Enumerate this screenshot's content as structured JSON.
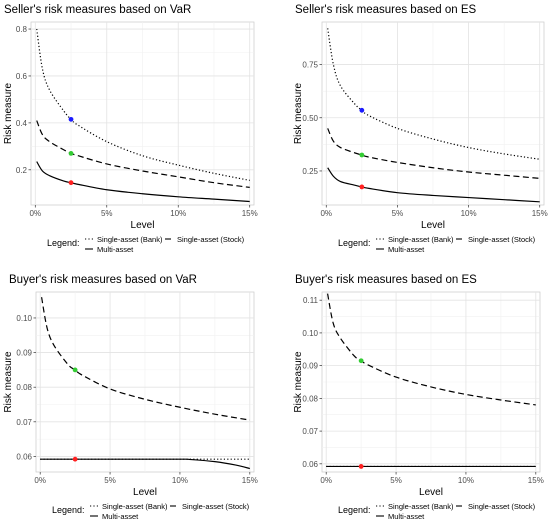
{
  "chart_data": [
    {
      "type": "line",
      "title": "Seller's risk measures based on VaR",
      "xlabel": "Level",
      "ylabel": "Risk measure",
      "xlim": [
        -0.3,
        15.3
      ],
      "ylim": [
        0.05,
        0.83
      ],
      "xticks": [
        0,
        5,
        10,
        15
      ],
      "xtick_labels": [
        "0%",
        "5%",
        "10%",
        "15%"
      ],
      "yticks": [
        0.2,
        0.4,
        0.6,
        0.8
      ],
      "ytick_labels": [
        "0.2",
        "0.4",
        "0.6",
        "0.8"
      ],
      "grid": true,
      "series": [
        {
          "name": "Single-asset (Bank)",
          "style": "dotted",
          "x": [
            0.1,
            0.5,
            1,
            2,
            2.5,
            3,
            5,
            7.5,
            10,
            12.5,
            15
          ],
          "y": [
            0.8,
            0.63,
            0.54,
            0.45,
            0.415,
            0.39,
            0.32,
            0.26,
            0.22,
            0.185,
            0.155
          ]
        },
        {
          "name": "Single-asset (Stock)",
          "style": "dashed",
          "x": [
            0.1,
            0.5,
            1,
            2,
            2.5,
            3,
            5,
            7.5,
            10,
            12.5,
            15
          ],
          "y": [
            0.41,
            0.35,
            0.32,
            0.285,
            0.27,
            0.26,
            0.225,
            0.195,
            0.17,
            0.145,
            0.125
          ]
        },
        {
          "name": "Multi-asset",
          "style": "solid",
          "x": [
            0.1,
            0.5,
            1,
            2,
            2.5,
            3,
            5,
            7.5,
            10,
            12.5,
            15
          ],
          "y": [
            0.235,
            0.195,
            0.175,
            0.152,
            0.145,
            0.138,
            0.115,
            0.098,
            0.085,
            0.075,
            0.065
          ]
        }
      ],
      "markers": [
        {
          "x": 2.5,
          "y": 0.415,
          "color": "#1a1aff"
        },
        {
          "x": 2.5,
          "y": 0.27,
          "color": "#33cc33"
        },
        {
          "x": 2.5,
          "y": 0.145,
          "color": "#ff2020"
        }
      ],
      "legend": {
        "title": "Legend:",
        "placement": "bottom"
      }
    },
    {
      "type": "line",
      "title": "Seller's risk measures based on ES",
      "xlabel": "Level",
      "ylabel": "Risk measure",
      "xlim": [
        -0.3,
        15.3
      ],
      "ylim": [
        0.09,
        0.95
      ],
      "xticks": [
        0,
        5,
        10,
        15
      ],
      "xtick_labels": [
        "0%",
        "5%",
        "10%",
        "15%"
      ],
      "yticks": [
        0.25,
        0.5,
        0.75
      ],
      "ytick_labels": [
        "0.25",
        "0.50",
        "0.75"
      ],
      "grid": true,
      "series": [
        {
          "name": "Single-asset (Bank)",
          "style": "dotted",
          "x": [
            0.1,
            0.5,
            1,
            2,
            2.5,
            3,
            5,
            7.5,
            10,
            12.5,
            15
          ],
          "y": [
            0.92,
            0.75,
            0.65,
            0.565,
            0.535,
            0.51,
            0.45,
            0.4,
            0.36,
            0.33,
            0.305
          ]
        },
        {
          "name": "Single-asset (Stock)",
          "style": "dashed",
          "x": [
            0.1,
            0.5,
            1,
            2,
            2.5,
            3,
            5,
            7.5,
            10,
            12.5,
            15
          ],
          "y": [
            0.45,
            0.39,
            0.36,
            0.335,
            0.325,
            0.315,
            0.29,
            0.265,
            0.245,
            0.23,
            0.215
          ]
        },
        {
          "name": "Multi-asset",
          "style": "solid",
          "x": [
            0.1,
            0.5,
            1,
            2,
            2.5,
            3,
            5,
            7.5,
            10,
            12.5,
            15
          ],
          "y": [
            0.265,
            0.225,
            0.2,
            0.183,
            0.175,
            0.168,
            0.148,
            0.135,
            0.125,
            0.115,
            0.105
          ]
        }
      ],
      "markers": [
        {
          "x": 2.5,
          "y": 0.535,
          "color": "#1a1aff"
        },
        {
          "x": 2.5,
          "y": 0.325,
          "color": "#33cc33"
        },
        {
          "x": 2.5,
          "y": 0.175,
          "color": "#ff2020"
        }
      ],
      "legend": {
        "title": "Legend:",
        "placement": "bottom"
      }
    },
    {
      "type": "line",
      "title": "Buyer's risk measures based on VaR",
      "xlabel": "Level",
      "ylabel": "Risk measure",
      "xlim": [
        -0.3,
        15.3
      ],
      "ylim": [
        0.0555,
        0.1075
      ],
      "xticks": [
        0,
        5,
        10,
        15
      ],
      "xtick_labels": [
        "0%",
        "5%",
        "10%",
        "15%"
      ],
      "yticks": [
        0.06,
        0.07,
        0.08,
        0.09,
        0.1
      ],
      "ytick_labels": [
        "0.06",
        "0.07",
        "0.08",
        "0.09",
        "0.10"
      ],
      "grid": true,
      "series": [
        {
          "name": "Single-asset (Bank)",
          "style": "dotted",
          "x": [
            0,
            15
          ],
          "y": [
            0.0592,
            0.0592
          ]
        },
        {
          "name": "Single-asset (Stock)",
          "style": "dashed",
          "x": [
            0.1,
            0.5,
            1,
            2,
            2.5,
            3,
            5,
            7.5,
            10,
            12.5,
            15
          ],
          "y": [
            0.106,
            0.097,
            0.092,
            0.0865,
            0.085,
            0.0835,
            0.0795,
            0.0765,
            0.0742,
            0.0722,
            0.0705
          ]
        },
        {
          "name": "Multi-asset",
          "style": "solid",
          "x": [
            0,
            2.5,
            5,
            10,
            10.8,
            12.5,
            14,
            15
          ],
          "y": [
            0.0592,
            0.0592,
            0.0592,
            0.0592,
            0.0591,
            0.0585,
            0.0575,
            0.0565
          ]
        }
      ],
      "markers": [
        {
          "x": 2.5,
          "y": 0.085,
          "color": "#33cc33"
        },
        {
          "x": 2.5,
          "y": 0.0592,
          "color": "#ff2020"
        }
      ],
      "legend": {
        "title": "Legend:",
        "placement": "bottom"
      }
    },
    {
      "type": "line",
      "title": "Buyer's risk measures based on ES",
      "xlabel": "Level",
      "ylabel": "Risk measure",
      "xlim": [
        -0.3,
        15.3
      ],
      "ylim": [
        0.0575,
        0.1125
      ],
      "xticks": [
        0,
        5,
        10,
        15
      ],
      "xtick_labels": [
        "0%",
        "5%",
        "10%",
        "15%"
      ],
      "yticks": [
        0.06,
        0.07,
        0.08,
        0.09,
        0.1,
        0.11
      ],
      "ytick_labels": [
        "0.06",
        "0.07",
        "0.08",
        "0.09",
        "0.10",
        "0.11"
      ],
      "grid": true,
      "series": [
        {
          "name": "Single-asset (Bank)",
          "style": "dotted",
          "x": [
            0,
            15
          ],
          "y": [
            0.0592,
            0.0592
          ]
        },
        {
          "name": "Single-asset (Stock)",
          "style": "dashed",
          "x": [
            0.1,
            0.5,
            1,
            2,
            2.5,
            3,
            5,
            7.5,
            10,
            12.5,
            15
          ],
          "y": [
            0.112,
            0.103,
            0.0985,
            0.093,
            0.0915,
            0.0902,
            0.0865,
            0.0835,
            0.0812,
            0.0795,
            0.078
          ]
        },
        {
          "name": "Multi-asset",
          "style": "solid",
          "x": [
            0,
            15
          ],
          "y": [
            0.0592,
            0.0592
          ]
        }
      ],
      "markers": [
        {
          "x": 2.5,
          "y": 0.0915,
          "color": "#33cc33"
        },
        {
          "x": 2.5,
          "y": 0.0592,
          "color": "#ff2020"
        }
      ],
      "legend": {
        "title": "Legend:",
        "placement": "bottom"
      }
    }
  ]
}
